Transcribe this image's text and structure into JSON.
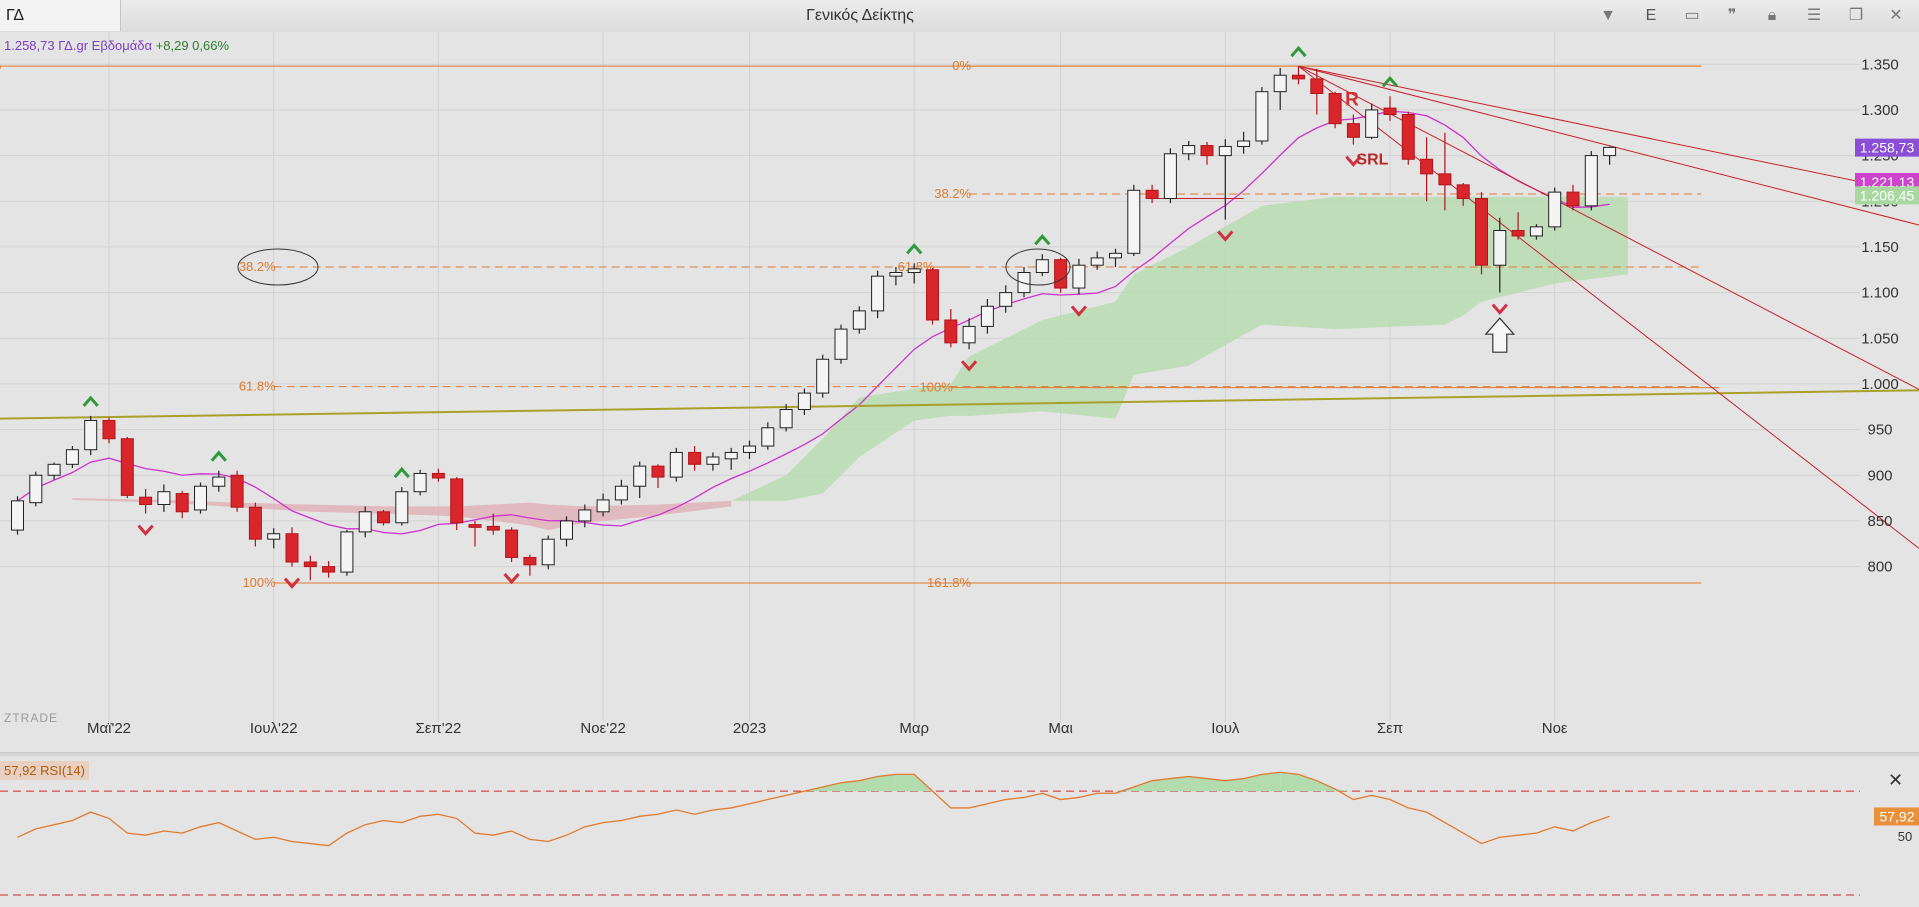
{
  "toolbar": {
    "symbol": "ΓΔ",
    "title": "Γενικός Δείκτης",
    "dropdown_icon": "chevron-down-icon",
    "e_button": "E",
    "icons": [
      "panel-icon",
      "quote-icon",
      "lock-icon",
      "menu-icon",
      "restore-window-icon",
      "close-icon"
    ]
  },
  "info": {
    "price": "1.258,73 ΓΔ.gr Εβδομάδα",
    "change": "+8,29 0,66%"
  },
  "watermark": "ZTRADE",
  "colors": {
    "up_candle": "#f4f4f4",
    "down_candle": "#d9262c",
    "ma_line": "#cc33cc",
    "cloud_green": "#b9dcb2",
    "cloud_red": "#e1b3b9",
    "fib_orange": "#e07a30",
    "support_olive": "#a8a02a",
    "trend_red": "#c8202a",
    "rsi_line": "#e07a30",
    "rsi_fill": "#b2dcae",
    "rsi_bands": "#d22828",
    "price_tag": "#8a4fd6",
    "ma_tag": "#cc44cc",
    "cloud_tag": "#a8d8a0"
  },
  "chart_data": {
    "type": "candlestick",
    "timeframe": "Εβδομάδα",
    "ylim": [
      770,
      1370
    ],
    "y_ticks": [
      "800",
      "850",
      "900",
      "950",
      "1.000",
      "1.050",
      "1.100",
      "1.150",
      "1.200",
      "1.250",
      "1.300",
      "1.350"
    ],
    "y_tick_values": [
      800,
      850,
      900,
      950,
      1000,
      1050,
      1100,
      1150,
      1200,
      1250,
      1300,
      1350
    ],
    "x_labels": [
      "Μαϊ'22",
      "Ιουλ'22",
      "Σεπ'22",
      "Νοε'22",
      "2023",
      "Μαρ",
      "Μαι",
      "Ιουλ",
      "Σεπ",
      "Νοε"
    ],
    "x_label_index": [
      5,
      14,
      23,
      32,
      40,
      49,
      57,
      66,
      75,
      84
    ],
    "candles": [
      [
        0,
        840,
        877,
        835,
        872
      ],
      [
        1,
        870,
        904,
        866,
        900
      ],
      [
        2,
        900,
        914,
        895,
        912
      ],
      [
        3,
        912,
        932,
        908,
        928
      ],
      [
        4,
        928,
        965,
        922,
        960
      ],
      [
        5,
        960,
        963,
        935,
        940
      ],
      [
        6,
        940,
        942,
        875,
        878
      ],
      [
        7,
        876,
        885,
        858,
        868
      ],
      [
        8,
        868,
        890,
        860,
        882
      ],
      [
        9,
        880,
        883,
        853,
        860
      ],
      [
        10,
        862,
        892,
        858,
        888
      ],
      [
        11,
        888,
        905,
        882,
        898
      ],
      [
        12,
        900,
        905,
        860,
        865
      ],
      [
        13,
        865,
        870,
        822,
        830
      ],
      [
        14,
        830,
        842,
        820,
        836
      ],
      [
        15,
        836,
        843,
        800,
        805
      ],
      [
        16,
        805,
        812,
        785,
        800
      ],
      [
        17,
        800,
        806,
        788,
        794
      ],
      [
        18,
        794,
        840,
        790,
        838
      ],
      [
        19,
        838,
        866,
        832,
        860
      ],
      [
        20,
        860,
        862,
        845,
        848
      ],
      [
        21,
        848,
        887,
        845,
        882
      ],
      [
        22,
        882,
        906,
        878,
        902
      ],
      [
        23,
        902,
        907,
        893,
        897
      ],
      [
        24,
        896,
        898,
        840,
        848
      ],
      [
        25,
        846,
        850,
        822,
        843
      ],
      [
        26,
        844,
        858,
        835,
        840
      ],
      [
        27,
        840,
        843,
        805,
        810
      ],
      [
        28,
        810,
        813,
        790,
        802
      ],
      [
        29,
        802,
        834,
        797,
        830
      ],
      [
        30,
        830,
        855,
        822,
        850
      ],
      [
        31,
        850,
        868,
        843,
        862
      ],
      [
        32,
        860,
        880,
        855,
        873
      ],
      [
        33,
        873,
        895,
        868,
        888
      ],
      [
        34,
        888,
        915,
        875,
        910
      ],
      [
        35,
        910,
        912,
        886,
        898
      ],
      [
        36,
        898,
        930,
        893,
        925
      ],
      [
        37,
        925,
        932,
        905,
        912
      ],
      [
        38,
        912,
        925,
        905,
        920
      ],
      [
        39,
        918,
        930,
        906,
        925
      ],
      [
        40,
        925,
        938,
        918,
        932
      ],
      [
        41,
        932,
        958,
        928,
        952
      ],
      [
        42,
        952,
        978,
        948,
        972
      ],
      [
        43,
        972,
        995,
        966,
        990
      ],
      [
        44,
        990,
        1032,
        985,
        1027
      ],
      [
        45,
        1027,
        1065,
        1022,
        1060
      ],
      [
        46,
        1060,
        1085,
        1055,
        1080
      ],
      [
        47,
        1080,
        1124,
        1072,
        1118
      ],
      [
        48,
        1118,
        1128,
        1108,
        1122
      ],
      [
        49,
        1122,
        1132,
        1110,
        1126
      ],
      [
        50,
        1125,
        1127,
        1065,
        1070
      ],
      [
        51,
        1070,
        1082,
        1040,
        1045
      ],
      [
        52,
        1045,
        1072,
        1038,
        1063
      ],
      [
        53,
        1063,
        1093,
        1055,
        1085
      ],
      [
        54,
        1085,
        1108,
        1078,
        1100
      ],
      [
        55,
        1100,
        1128,
        1095,
        1122
      ],
      [
        56,
        1122,
        1142,
        1118,
        1136
      ],
      [
        57,
        1136,
        1138,
        1100,
        1105
      ],
      [
        58,
        1105,
        1137,
        1098,
        1130
      ],
      [
        59,
        1130,
        1145,
        1125,
        1138
      ],
      [
        60,
        1138,
        1148,
        1128,
        1143
      ],
      [
        61,
        1143,
        1218,
        1140,
        1212
      ],
      [
        62,
        1212,
        1218,
        1198,
        1203
      ],
      [
        63,
        1203,
        1258,
        1198,
        1252
      ],
      [
        64,
        1252,
        1266,
        1245,
        1261
      ],
      [
        65,
        1261,
        1265,
        1240,
        1250
      ],
      [
        66,
        1250,
        1268,
        1180,
        1260
      ],
      [
        67,
        1260,
        1276,
        1252,
        1266
      ],
      [
        68,
        1266,
        1325,
        1262,
        1320
      ],
      [
        69,
        1320,
        1346,
        1300,
        1338
      ],
      [
        70,
        1338,
        1348,
        1328,
        1334
      ],
      [
        71,
        1334,
        1345,
        1295,
        1318
      ],
      [
        72,
        1318,
        1320,
        1280,
        1285
      ],
      [
        73,
        1285,
        1295,
        1262,
        1270
      ],
      [
        74,
        1270,
        1307,
        1268,
        1300
      ],
      [
        75,
        1302,
        1315,
        1288,
        1295
      ],
      [
        76,
        1295,
        1298,
        1240,
        1246
      ],
      [
        77,
        1246,
        1270,
        1200,
        1230
      ],
      [
        78,
        1230,
        1275,
        1190,
        1218
      ],
      [
        79,
        1218,
        1220,
        1195,
        1203
      ],
      [
        80,
        1203,
        1210,
        1120,
        1130
      ],
      [
        81,
        1130,
        1182,
        1100,
        1168
      ],
      [
        82,
        1168,
        1188,
        1158,
        1162
      ],
      [
        83,
        1162,
        1175,
        1158,
        1172
      ],
      [
        84,
        1172,
        1215,
        1168,
        1210
      ],
      [
        85,
        1210,
        1218,
        1190,
        1195
      ],
      [
        86,
        1195,
        1255,
        1190,
        1250
      ],
      [
        87,
        1250,
        1260,
        1240,
        1259
      ]
    ],
    "overlays": {
      "fib_levels": [
        {
          "label": "0%",
          "price": 1348,
          "i0": -1,
          "i1": 92
        },
        {
          "label": "0%",
          "price": 1348,
          "i0": 52,
          "i1": 92
        },
        {
          "label": "38.2%",
          "price": 1208,
          "i0": 52,
          "i1": 92,
          "dashed": true
        },
        {
          "label": "38.2%",
          "price": 1128,
          "i0": 14,
          "i1": 92,
          "dashed": true
        },
        {
          "label": "61.8%",
          "price": 1128,
          "i0": 50,
          "i1": 52
        },
        {
          "label": "61.8%",
          "price": 997,
          "i0": 14,
          "i1": 92,
          "dashed": true
        },
        {
          "label": "100%",
          "price": 996,
          "i0": 51,
          "i1": 93
        },
        {
          "label": "100%",
          "price": 782,
          "i0": 14,
          "i1": 92
        },
        {
          "label": "161.8%",
          "price": 782,
          "i0": 52,
          "i1": 92
        }
      ],
      "annotations": [
        "R",
        "SRL"
      ],
      "price_tags": [
        "1.258,73",
        "1.221,13",
        "1.206,45"
      ]
    }
  },
  "rsi": {
    "label": "57,92 RSI(14)",
    "value_tag": "57,92",
    "tick": "50",
    "period": 14,
    "ylim": [
      20,
      82
    ],
    "upper": 70,
    "lower": 30,
    "values": [
      48,
      52,
      54,
      56,
      60,
      57,
      50,
      49,
      51,
      50,
      53,
      55,
      51,
      47,
      48,
      46,
      45,
      44,
      50,
      54,
      56,
      55,
      58,
      59,
      57,
      50,
      49,
      51,
      47,
      46,
      49,
      53,
      55,
      56,
      58,
      59,
      61,
      59,
      61,
      62,
      64,
      66,
      68,
      70,
      72,
      74,
      75,
      77,
      78,
      78,
      70,
      62,
      62,
      64,
      66,
      67,
      69,
      66,
      67,
      69,
      69,
      72,
      75,
      76,
      77,
      76,
      75,
      76,
      78,
      79,
      78,
      75,
      71,
      66,
      68,
      66,
      62,
      60,
      55,
      50,
      45,
      48,
      49,
      50,
      53,
      51,
      55,
      58
    ]
  }
}
